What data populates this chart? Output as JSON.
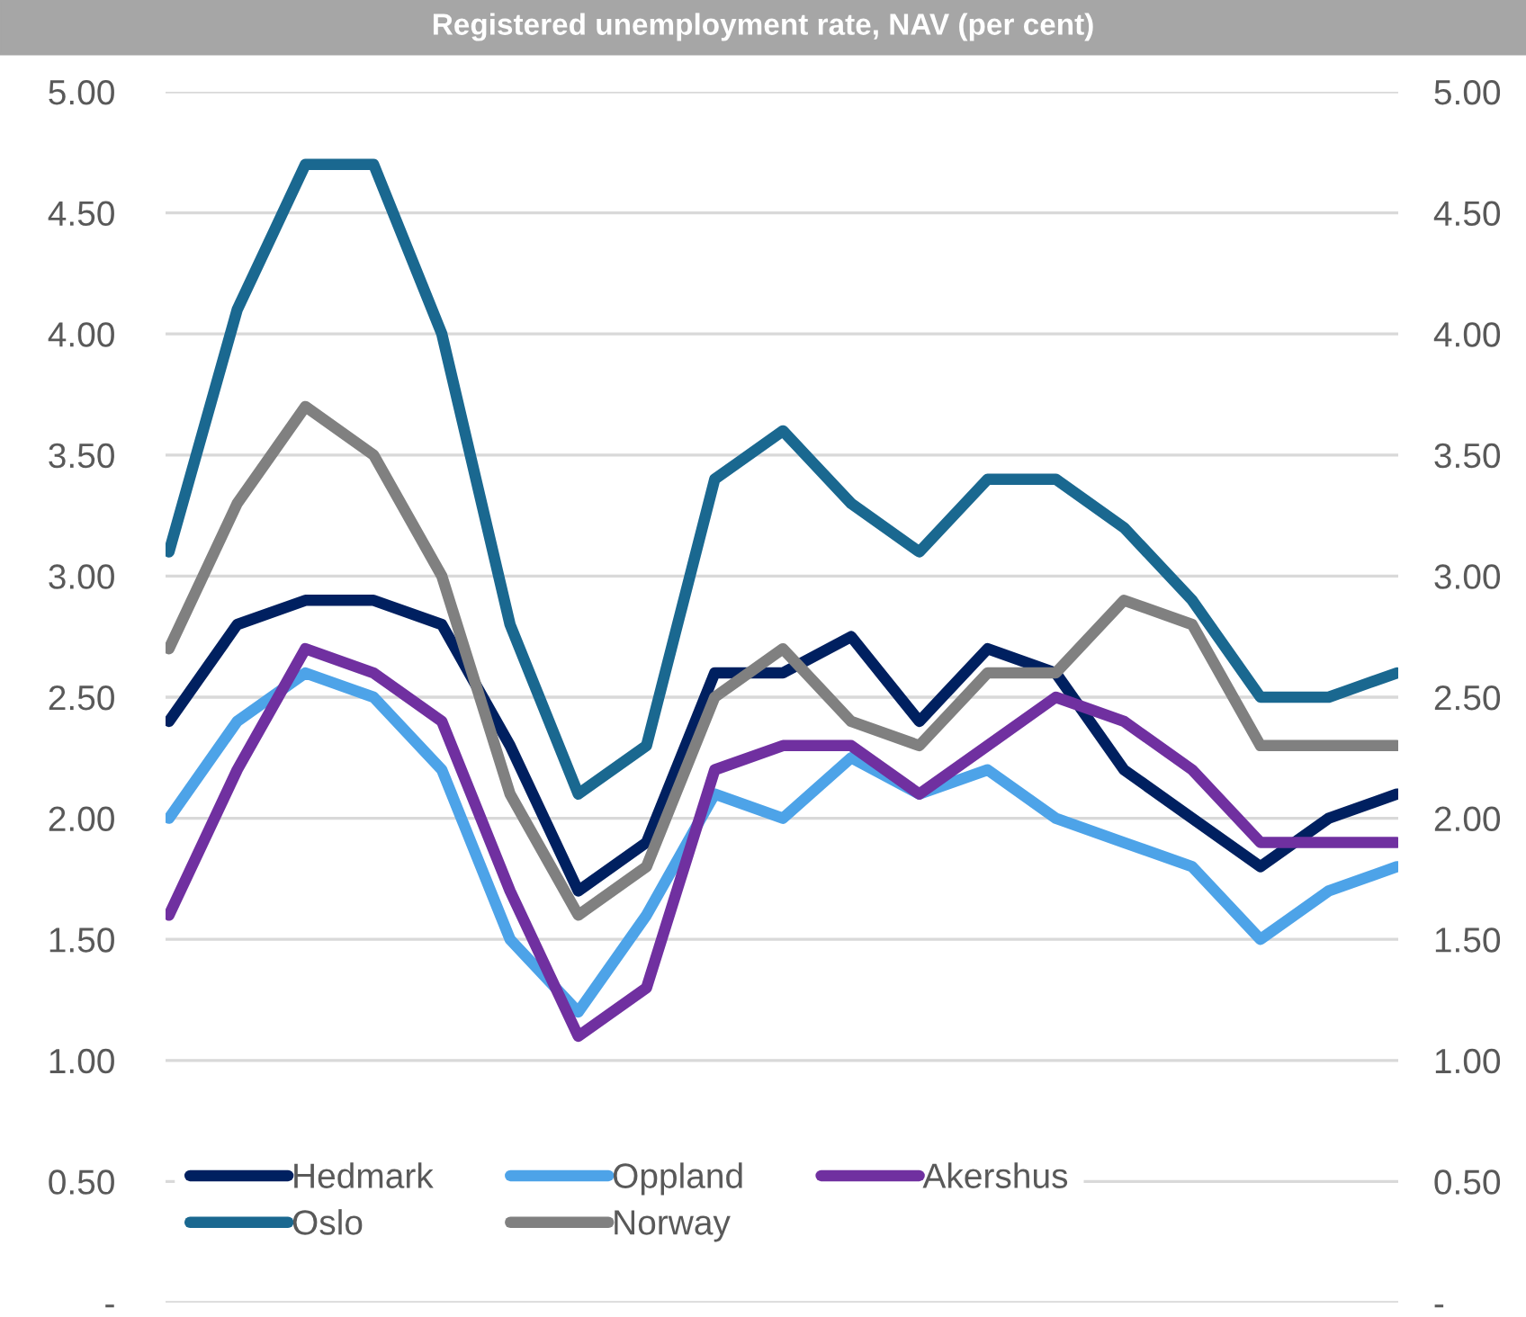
{
  "chart_data": {
    "type": "line",
    "title": "Registered unemployment rate, NAV (per cent)",
    "categories": [
      null,
      null,
      null,
      null,
      null,
      null,
      null,
      null,
      null,
      null,
      null,
      null,
      null,
      null,
      null,
      null,
      null,
      null,
      null
    ],
    "series": [
      {
        "name": "Hedmark",
        "color": "#002060",
        "values": [
          2.4,
          2.8,
          2.9,
          2.9,
          2.8,
          2.3,
          1.7,
          1.9,
          2.6,
          2.6,
          2.75,
          2.4,
          2.7,
          2.6,
          2.2,
          2.0,
          1.8,
          2.0,
          2.1
        ]
      },
      {
        "name": "Oppland",
        "color": "#4da3e8",
        "values": [
          2.0,
          2.4,
          2.6,
          2.5,
          2.2,
          1.5,
          1.2,
          1.6,
          2.1,
          2.0,
          2.25,
          2.1,
          2.2,
          2.0,
          1.9,
          1.8,
          1.5,
          1.7,
          1.8
        ]
      },
      {
        "name": "Akershus",
        "color": "#7030a0",
        "values": [
          1.6,
          2.2,
          2.7,
          2.6,
          2.4,
          1.7,
          1.1,
          1.3,
          2.2,
          2.3,
          2.3,
          2.1,
          2.3,
          2.5,
          2.4,
          2.2,
          1.9,
          1.9,
          1.9
        ]
      },
      {
        "name": "Oslo",
        "color": "#1a6890",
        "values": [
          3.1,
          4.1,
          4.7,
          4.7,
          4.0,
          2.8,
          2.1,
          2.3,
          3.4,
          3.6,
          3.3,
          3.1,
          3.4,
          3.4,
          3.2,
          2.9,
          2.5,
          2.5,
          2.6
        ]
      },
      {
        "name": "Norway",
        "color": "#808080",
        "values": [
          2.7,
          3.3,
          3.7,
          3.5,
          3.0,
          2.1,
          1.6,
          1.8,
          2.5,
          2.7,
          2.4,
          2.3,
          2.6,
          2.6,
          2.9,
          2.8,
          2.3,
          2.3,
          2.3
        ]
      }
    ],
    "ylim": [
      0,
      5
    ],
    "yticks": [
      {
        "value": 0,
        "label": "-"
      },
      {
        "value": 0.5,
        "label": "0.50"
      },
      {
        "value": 1,
        "label": "1.00"
      },
      {
        "value": 1.5,
        "label": "1.50"
      },
      {
        "value": 2,
        "label": "2.00"
      },
      {
        "value": 2.5,
        "label": "2.50"
      },
      {
        "value": 3,
        "label": "3.00"
      },
      {
        "value": 3.5,
        "label": "3.50"
      },
      {
        "value": 4,
        "label": "4.00"
      },
      {
        "value": 4.5,
        "label": "4.50"
      },
      {
        "value": 5,
        "label": "5.00"
      }
    ],
    "y2lim": [
      0,
      5
    ],
    "y2ticks": [
      {
        "value": 0,
        "label": "-"
      },
      {
        "value": 0.5,
        "label": "0.50"
      },
      {
        "value": 1,
        "label": "1.00"
      },
      {
        "value": 1.5,
        "label": "1.50"
      },
      {
        "value": 2,
        "label": "2.00"
      },
      {
        "value": 2.5,
        "label": "2.50"
      },
      {
        "value": 3,
        "label": "3.00"
      },
      {
        "value": 3.5,
        "label": "3.50"
      },
      {
        "value": 4,
        "label": "4.00"
      },
      {
        "value": 4.5,
        "label": "4.50"
      },
      {
        "value": 5,
        "label": "5.00"
      }
    ],
    "tick_labels": "y",
    "grid": "y",
    "legend": "bottom left",
    "marker": "none",
    "line_style": "solid"
  }
}
